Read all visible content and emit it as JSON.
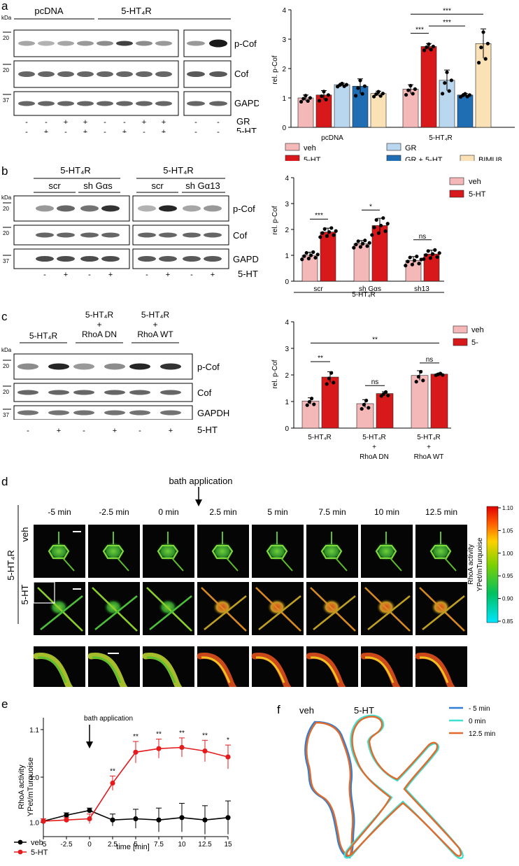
{
  "panels": {
    "a": {
      "letter": "a",
      "kda": "kDa",
      "groups": [
        "pcDNA",
        "5-HT₄R"
      ],
      "markers": [
        "20",
        "20",
        "37"
      ],
      "bands": [
        "p-Cof",
        "Cof",
        "GAPDH"
      ],
      "rows": [
        {
          "label": "GR",
          "signs": [
            "-",
            "-",
            "+",
            "+",
            "-",
            "-",
            "+",
            "+",
            "-",
            "-"
          ]
        },
        {
          "label": "5-HT",
          "signs": [
            "-",
            "+",
            "-",
            "+",
            "-",
            "+",
            "-",
            "+",
            "-",
            "-"
          ]
        },
        {
          "label": "BIMU8",
          "signs": [
            "",
            "",
            "",
            "",
            "",
            "",
            "",
            "",
            "-",
            "+"
          ]
        }
      ]
    },
    "b": {
      "letter": "b",
      "kda": "kDa",
      "groups": [
        "5-HT₄R",
        "5-HT₄R"
      ],
      "subgroups": [
        "scr",
        "sh Gαs",
        "scr",
        "sh Gα13"
      ],
      "markers": [
        "20",
        "20",
        "37"
      ],
      "bands": [
        "p-Cof",
        "Cof",
        "GAPDH"
      ],
      "row": {
        "label": "5-HT",
        "signs": [
          "-",
          "+",
          "-",
          "+",
          "-",
          "+",
          "-",
          "+"
        ]
      }
    },
    "c": {
      "letter": "c",
      "kda": "kDa",
      "groups": [
        "5-HT₄R",
        "5-HT₄R\n+\nRhoA DN",
        "5-HT₄R\n+\nRhoA WT"
      ],
      "markers": [
        "20",
        "20",
        "37"
      ],
      "bands": [
        "p-Cof",
        "Cof",
        "GAPDH"
      ],
      "row": {
        "label": "5-HT",
        "signs": [
          "-",
          "+",
          "-",
          "+",
          "-",
          "+"
        ]
      }
    },
    "d": {
      "letter": "d",
      "times": [
        "-5 min",
        "-2.5 min",
        "0 min",
        "2.5 min",
        "5 min",
        "7.5 min",
        "10 min",
        "12.5 min"
      ],
      "arrow_label": "bath application",
      "rows": [
        "veh",
        "5-HT"
      ],
      "side_label": "5-HT₄R",
      "colorbar": {
        "title": "RhoA activity",
        "subtitle": "YPet/mTurquoise",
        "ticks": [
          "1.10",
          "1.05",
          "1.00",
          "0.95",
          "0.90",
          "0.85"
        ]
      }
    },
    "f": {
      "letter": "f",
      "labels": [
        "veh",
        "5-HT"
      ],
      "legend": [
        {
          "name": "- 5 min",
          "color": "#2f7fd6"
        },
        {
          "name": "0 min",
          "color": "#3fe0d0"
        },
        {
          "name": "12.5 min",
          "color": "#e06a2c"
        }
      ]
    }
  },
  "chart_data": [
    {
      "id": "a",
      "type": "bar",
      "ylabel": "rel. p-Cof",
      "ylim": [
        0,
        4
      ],
      "yticks": [
        0,
        1,
        2,
        3,
        4
      ],
      "groups": [
        "pcDNA",
        "5-HT₄R"
      ],
      "series": [
        {
          "name": "veh",
          "color": "#f4b8b8",
          "values": [
            1.0,
            1.3
          ],
          "err": [
            0.1,
            0.15
          ]
        },
        {
          "name": "5-HT",
          "color": "#d7191c",
          "values": [
            1.1,
            2.75
          ],
          "err": [
            0.15,
            0.1
          ]
        },
        {
          "name": "GR",
          "color": "#b9d7ee",
          "values": [
            1.45,
            1.6
          ],
          "err": [
            0.05,
            0.35
          ]
        },
        {
          "name": "GR + 5-HT",
          "color": "#1f6db3",
          "values": [
            1.4,
            1.1
          ],
          "err": [
            0.25,
            0.05
          ]
        },
        {
          "name": "BIMU8",
          "color": "#fbe2b6",
          "values": [
            1.15,
            2.85
          ],
          "err": [
            0.08,
            0.5
          ]
        }
      ],
      "significance": [
        "***",
        "***",
        "***"
      ]
    },
    {
      "id": "b",
      "type": "bar",
      "ylabel": "rel. p-Cof",
      "ylim": [
        0,
        4
      ],
      "yticks": [
        0,
        1,
        2,
        3,
        4
      ],
      "categories": [
        "scr",
        "sh Gαs",
        "sh13"
      ],
      "bottom_label": "5-HT₄R",
      "series": [
        {
          "name": "veh",
          "color": "#f4b8b8",
          "values": [
            1.0,
            1.45,
            0.8
          ],
          "err": [
            0.12,
            0.12,
            0.15
          ]
        },
        {
          "name": "5-HT",
          "color": "#d7191c",
          "values": [
            1.9,
            2.15,
            1.05
          ],
          "err": [
            0.15,
            0.28,
            0.15
          ]
        }
      ],
      "significance": [
        "***",
        "*",
        "ns"
      ]
    },
    {
      "id": "c",
      "type": "bar",
      "ylabel": "rel. p-Cof",
      "ylim": [
        0,
        4
      ],
      "yticks": [
        0,
        1,
        2,
        3,
        4
      ],
      "categories": [
        "5-HT₄R",
        "5-HT₄R\n+\nRhoA DN",
        "5-HT₄R\n+\nRhoA WT"
      ],
      "series": [
        {
          "name": "veh",
          "color": "#f4b8b8",
          "values": [
            1.02,
            0.92,
            1.98
          ],
          "err": [
            0.12,
            0.15,
            0.18
          ]
        },
        {
          "name": "5-",
          "color": "#d7191c",
          "values": [
            1.92,
            1.3,
            2.03
          ],
          "err": [
            0.2,
            0.07,
            0.03
          ]
        }
      ],
      "significance": [
        "**",
        "**",
        "ns",
        "ns"
      ]
    },
    {
      "id": "e",
      "type": "line",
      "ylabel": "RhoA activity",
      "ylabel2": "YPet/mTurquoise",
      "xlabel": "time [min]",
      "x": [
        -5,
        -2.5,
        0,
        2.5,
        5,
        7.5,
        10,
        12.5,
        15
      ],
      "xticks": [
        "-5",
        "-2.5",
        "0",
        "2.5",
        "5",
        "7.5",
        "10",
        "12.5",
        "15"
      ],
      "ytick_labels": [
        "1.1",
        "1.0",
        "1.0"
      ],
      "annotation": "bath application",
      "series": [
        {
          "name": "veh",
          "color": "#000000",
          "values": [
            0.965,
            0.99,
            1.01,
            0.97,
            0.975,
            0.97,
            0.98,
            0.97,
            0.98
          ],
          "err": [
            0.01,
            0.01,
            0.01,
            0.025,
            0.04,
            0.05,
            0.06,
            0.06,
            0.07
          ]
        },
        {
          "name": "5-HT",
          "color": "#e41a1c",
          "values": [
            0.965,
            0.97,
            0.975,
            1.125,
            1.255,
            1.27,
            1.275,
            1.26,
            1.235
          ],
          "err": [
            0.01,
            0.01,
            0.02,
            0.03,
            0.045,
            0.04,
            0.04,
            0.045,
            0.05
          ]
        }
      ],
      "significance": [
        "**",
        "**",
        "**",
        "**",
        "**",
        "*"
      ]
    }
  ]
}
